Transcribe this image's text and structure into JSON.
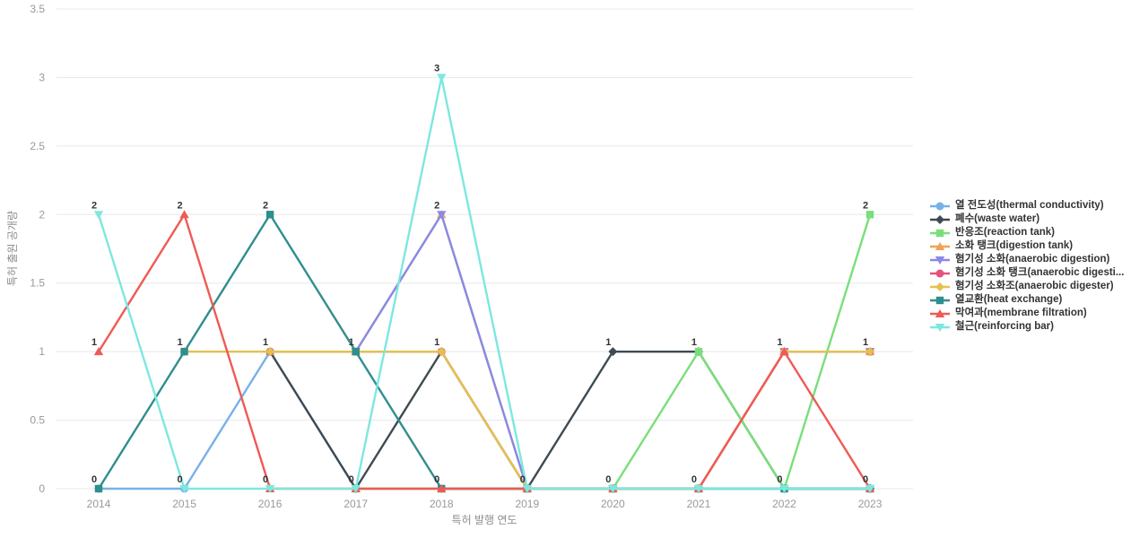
{
  "chart_data": {
    "type": "line",
    "title": "",
    "xlabel": "특허 발행 연도",
    "ylabel": "특허 출원 공개량",
    "x_categories": [
      "2014",
      "2015",
      "2016",
      "2017",
      "2018",
      "2019",
      "2020",
      "2021",
      "2022",
      "2023"
    ],
    "y_ticks": [
      "0",
      "0.5",
      "1",
      "1.5",
      "2",
      "2.5",
      "3",
      "3.5"
    ],
    "ylim": [
      0,
      3.5
    ],
    "grid": "horizontal",
    "legend_position": "right",
    "axis_tick_color": "#999999",
    "grid_color": "#e8e8e8",
    "label_color": "#333333",
    "series": [
      {
        "label": "열 전도성(thermal conductivity)",
        "color": "#76b1ea",
        "marker": "circle",
        "values": [
          0,
          0,
          1,
          0,
          0,
          0,
          0,
          0,
          0,
          0
        ]
      },
      {
        "label": "폐수(waste water)",
        "color": "#3f4a52",
        "marker": "diamond",
        "values": [
          null,
          null,
          1,
          0,
          1,
          0,
          1,
          1,
          0,
          0
        ]
      },
      {
        "label": "반응조(reaction tank)",
        "color": "#79df79",
        "marker": "square",
        "values": [
          null,
          null,
          null,
          0,
          0,
          0,
          0,
          1,
          0,
          2
        ]
      },
      {
        "label": "소화 탱크(digestion tank)",
        "color": "#f2a154",
        "marker": "triangle-up",
        "values": [
          null,
          null,
          1,
          1,
          2,
          0,
          0,
          0,
          1,
          1
        ]
      },
      {
        "label": "혐기성 소화(anaerobic digestion)",
        "color": "#8889e8",
        "marker": "triangle-down",
        "values": [
          null,
          null,
          null,
          1,
          2,
          0,
          0,
          0,
          1,
          1
        ]
      },
      {
        "label": "혐기성 소화 탱크(anaerobic digesti...",
        "color": "#e5537d",
        "marker": "circle",
        "values": [
          null,
          null,
          1,
          1,
          1,
          0,
          0,
          0,
          1,
          1
        ]
      },
      {
        "label": "혐기성 소화조(anaerobic digester)",
        "color": "#e2c24f",
        "marker": "diamond",
        "values": [
          null,
          1,
          1,
          1,
          1,
          0,
          0,
          0,
          1,
          1
        ]
      },
      {
        "label": "열교환(heat exchange)",
        "color": "#2f8e8e",
        "marker": "square",
        "values": [
          0,
          1,
          2,
          1,
          0,
          0,
          0,
          0,
          0,
          0
        ]
      },
      {
        "label": "막여과(membrane filtration)",
        "color": "#ef5a55",
        "marker": "triangle-up",
        "values": [
          1,
          2,
          0,
          0,
          0,
          0,
          0,
          0,
          1,
          0
        ]
      },
      {
        "label": "철근(reinforcing bar)",
        "color": "#7ce8df",
        "marker": "triangle-down",
        "values": [
          2,
          0,
          0,
          0,
          3,
          0,
          0,
          0,
          0,
          0
        ]
      }
    ],
    "point_labels": [
      {
        "x": "2014",
        "values": [
          0,
          1,
          2
        ]
      },
      {
        "x": "2015",
        "values": [
          0,
          1,
          2
        ]
      },
      {
        "x": "2016",
        "values": [
          0,
          1,
          2
        ]
      },
      {
        "x": "2017",
        "values": [
          0,
          1
        ]
      },
      {
        "x": "2018",
        "values": [
          0,
          1,
          2,
          3
        ]
      },
      {
        "x": "2019",
        "values": [
          0
        ]
      },
      {
        "x": "2020",
        "values": [
          0,
          1
        ]
      },
      {
        "x": "2021",
        "values": [
          0,
          1
        ]
      },
      {
        "x": "2022",
        "values": [
          0,
          1
        ]
      },
      {
        "x": "2023",
        "values": [
          0,
          1,
          2
        ]
      }
    ]
  }
}
